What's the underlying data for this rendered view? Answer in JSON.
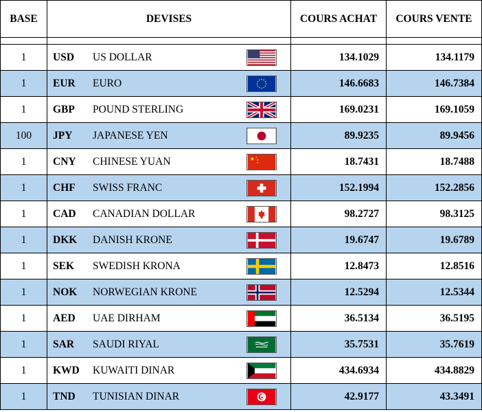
{
  "headers": {
    "base": "BASE",
    "devises": "DEVISES",
    "achat": "COURS ACHAT",
    "vente": "COURS VENTE"
  },
  "rows": [
    {
      "base": "1",
      "code": "USD",
      "name": "US DOLLAR",
      "flag": "us-flag-icon",
      "achat": "134.1029",
      "vente": "134.1179"
    },
    {
      "base": "1",
      "code": "EUR",
      "name": "EURO",
      "flag": "eu-flag-icon",
      "achat": "146.6683",
      "vente": "146.7384"
    },
    {
      "base": "1",
      "code": "GBP",
      "name": "POUND STERLING",
      "flag": "uk-flag-icon",
      "achat": "169.0231",
      "vente": "169.1059"
    },
    {
      "base": "100",
      "code": "JPY",
      "name": "JAPANESE YEN",
      "flag": "japan-flag-icon",
      "achat": "89.9235",
      "vente": "89.9456"
    },
    {
      "base": "1",
      "code": "CNY",
      "name": "CHINESE YUAN",
      "flag": "china-flag-icon",
      "achat": "18.7431",
      "vente": "18.7488"
    },
    {
      "base": "1",
      "code": "CHF",
      "name": "SWISS FRANC",
      "flag": "swiss-flag-icon",
      "achat": "152.1994",
      "vente": "152.2856"
    },
    {
      "base": "1",
      "code": "CAD",
      "name": "CANADIAN DOLLAR",
      "flag": "canada-flag-icon",
      "achat": "98.2727",
      "vente": "98.3125"
    },
    {
      "base": "1",
      "code": "DKK",
      "name": "DANISH KRONE",
      "flag": "denmark-flag-icon",
      "achat": "19.6747",
      "vente": "19.6789"
    },
    {
      "base": "1",
      "code": "SEK",
      "name": "SWEDISH KRONA",
      "flag": "sweden-flag-icon",
      "achat": "12.8473",
      "vente": "12.8516"
    },
    {
      "base": "1",
      "code": "NOK",
      "name": "NORWEGIAN KRONE",
      "flag": "norway-flag-icon",
      "achat": "12.5294",
      "vente": "12.5344"
    },
    {
      "base": "1",
      "code": "AED",
      "name": "UAE DIRHAM",
      "flag": "uae-flag-icon",
      "achat": "36.5134",
      "vente": "36.5195"
    },
    {
      "base": "1",
      "code": "SAR",
      "name": "SAUDI RIYAL",
      "flag": "saudi-flag-icon",
      "achat": "35.7531",
      "vente": "35.7619"
    },
    {
      "base": "1",
      "code": "KWD",
      "name": "KUWAITI DINAR",
      "flag": "kuwait-flag-icon",
      "achat": "434.6934",
      "vente": "434.8829"
    },
    {
      "base": "1",
      "code": "TND",
      "name": "TUNISIAN DINAR",
      "flag": "tunisia-flag-icon",
      "achat": "42.9177",
      "vente": "43.3491"
    }
  ],
  "colors": {
    "alt_row": "#b7d4ef"
  }
}
